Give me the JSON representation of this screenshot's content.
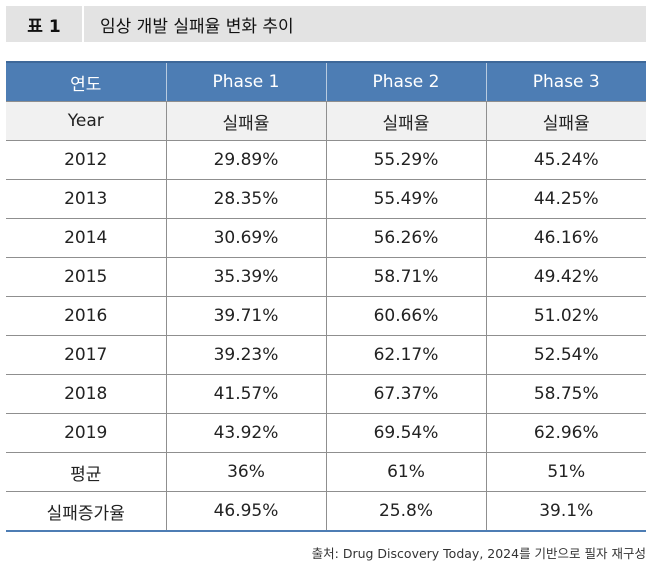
{
  "title": {
    "label": "표 1",
    "text": "임상 개발 실패율 변화 추이"
  },
  "table": {
    "header": [
      "연도",
      "Phase 1",
      "Phase 2",
      "Phase 3"
    ],
    "subheader": [
      "Year",
      "실패율",
      "실패율",
      "실패율"
    ],
    "rows": [
      [
        "2012",
        "29.89%",
        "55.29%",
        "45.24%"
      ],
      [
        "2013",
        "28.35%",
        "55.49%",
        "44.25%"
      ],
      [
        "2014",
        "30.69%",
        "56.26%",
        "46.16%"
      ],
      [
        "2015",
        "35.39%",
        "58.71%",
        "49.42%"
      ],
      [
        "2016",
        "39.71%",
        "60.66%",
        "51.02%"
      ],
      [
        "2017",
        "39.23%",
        "62.17%",
        "52.54%"
      ],
      [
        "2018",
        "41.57%",
        "67.37%",
        "58.75%"
      ],
      [
        "2019",
        "43.92%",
        "69.54%",
        "62.96%"
      ],
      [
        "평균",
        "36%",
        "61%",
        "51%"
      ],
      [
        "실패증가율",
        "46.95%",
        "25.8%",
        "39.1%"
      ]
    ]
  },
  "source": "출처: Drug Discovery Today, 2024를 기반으로 필자 재구성",
  "colors": {
    "header_bg": "#4d7db4",
    "subheader_bg": "#f1f1f1",
    "title_bg": "#e3e3e3"
  }
}
